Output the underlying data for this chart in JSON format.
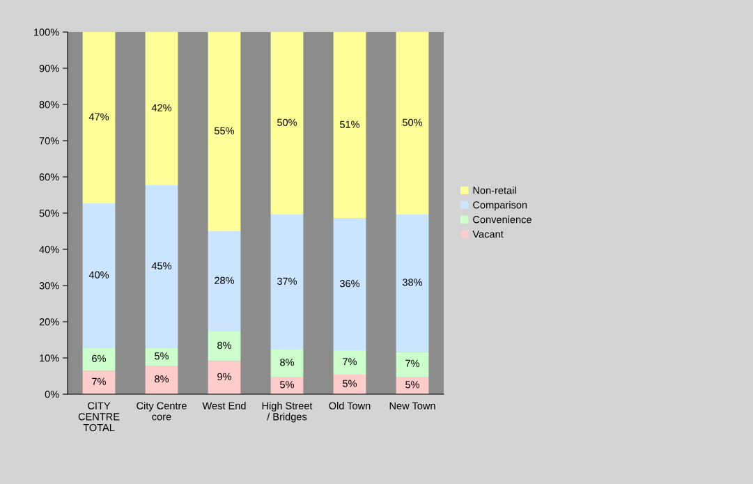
{
  "chart_data": {
    "type": "bar",
    "stacked": true,
    "categories": [
      "CITY\nCENTRE\nTOTAL",
      "City Centre\ncore",
      "West End",
      "High Street\n/ Bridges",
      "Old Town",
      "New Town"
    ],
    "series": [
      {
        "name": "Vacant",
        "color": "#ffcccc",
        "values": [
          6.5,
          7.9,
          9.2,
          4.8,
          5.4,
          4.8
        ],
        "value_labels": [
          "7%",
          "8%",
          "9%",
          "5%",
          "5%",
          "5%"
        ]
      },
      {
        "name": "Convenience",
        "color": "#ccffcc",
        "values": [
          6.2,
          4.8,
          8.1,
          7.5,
          6.7,
          6.9
        ],
        "value_labels": [
          "6%",
          "5%",
          "8%",
          "8%",
          "7%",
          "7%"
        ]
      },
      {
        "name": "Comparison",
        "color": "#cce5ff",
        "values": [
          40,
          45,
          27.7,
          37.3,
          36.4,
          37.9
        ],
        "value_labels": [
          "40%",
          "45%",
          "28%",
          "37%",
          "36%",
          "38%"
        ]
      },
      {
        "name": "Non-retail",
        "color": "#ffff99",
        "values": [
          47.3,
          42.3,
          55,
          50.4,
          51.5,
          50.4
        ],
        "value_labels": [
          "47%",
          "42%",
          "55%",
          "50%",
          "51%",
          "50%"
        ]
      }
    ],
    "ylim": [
      0,
      100
    ],
    "yticks": [
      {
        "value": 0,
        "label": "0%"
      },
      {
        "value": 10,
        "label": "10%"
      },
      {
        "value": 20,
        "label": "20%"
      },
      {
        "value": 30,
        "label": "30%"
      },
      {
        "value": 40,
        "label": "40%"
      },
      {
        "value": 50,
        "label": "50%"
      },
      {
        "value": 60,
        "label": "60%"
      },
      {
        "value": 70,
        "label": "70%"
      },
      {
        "value": 80,
        "label": "80%"
      },
      {
        "value": 90,
        "label": "90%"
      },
      {
        "value": 100,
        "label": "100%"
      }
    ],
    "grid": false,
    "legend": "right"
  }
}
